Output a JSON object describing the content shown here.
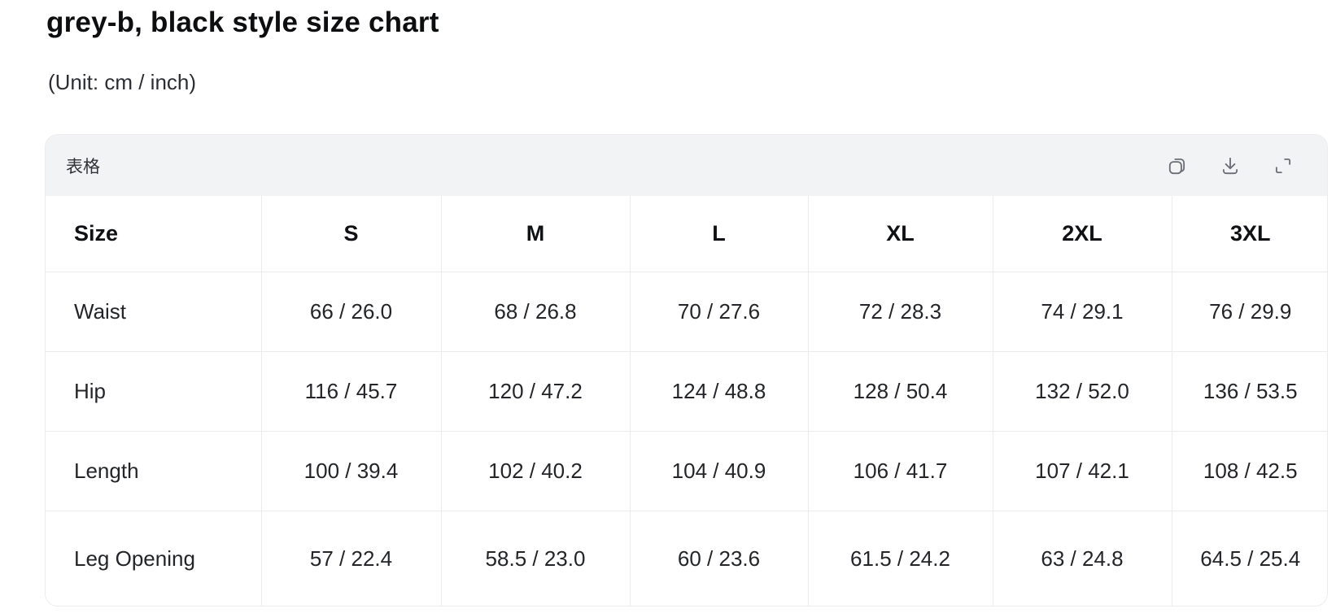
{
  "page": {
    "title": "grey-b, black style size chart",
    "unit_note": "(Unit: cm / inch)"
  },
  "card": {
    "toolbar_title": "表格",
    "actions": [
      {
        "name": "copy-icon"
      },
      {
        "name": "download-icon"
      },
      {
        "name": "expand-icon"
      }
    ]
  },
  "colors": {
    "toolbar_bg": "#f2f3f5",
    "border": "#ececee",
    "icon": "#6a6f76",
    "heading_text": "#0d0e10",
    "cell_text": "#232528"
  },
  "chart_data": {
    "type": "table",
    "title": "grey-b, black style size chart",
    "unit": "cm / inch",
    "columns": [
      "Size",
      "S",
      "M",
      "L",
      "XL",
      "2XL",
      "3XL"
    ],
    "rows": [
      [
        "Waist",
        "66 / 26.0",
        "68 / 26.8",
        "70 / 27.6",
        "72 / 28.3",
        "74 / 29.1",
        "76 / 29.9"
      ],
      [
        "Hip",
        "116 / 45.7",
        "120 / 47.2",
        "124 / 48.8",
        "128 / 50.4",
        "132 / 52.0",
        "136 / 53.5"
      ],
      [
        "Length",
        "100 / 39.4",
        "102 / 40.2",
        "104 / 40.9",
        "106 / 41.7",
        "107 / 42.1",
        "108 / 42.5"
      ],
      [
        "Leg Opening",
        "57 / 22.4",
        "58.5 / 23.0",
        "60 / 23.6",
        "61.5 / 24.2",
        "63 / 24.8",
        "64.5 / 25.4"
      ]
    ]
  }
}
